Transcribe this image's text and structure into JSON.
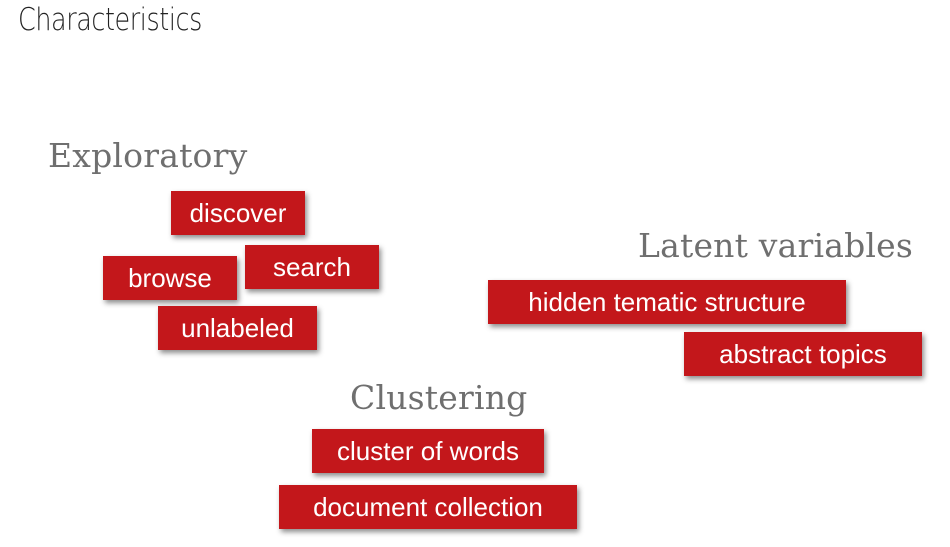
{
  "title": "Characteristics",
  "groups": {
    "exploratory": {
      "heading": "Exploratory",
      "tags": [
        "discover",
        "browse",
        "search",
        "unlabeled"
      ]
    },
    "latent": {
      "heading": "Latent variables",
      "tags": [
        "hidden tematic structure",
        "abstract topics"
      ]
    },
    "clustering": {
      "heading": "Clustering",
      "tags": [
        "cluster of words",
        "document collection"
      ]
    }
  },
  "colors": {
    "tag_background": "#c3171b",
    "tag_text": "#ffffff",
    "heading_text": "#6f6f6f",
    "title_text": "#222222"
  }
}
